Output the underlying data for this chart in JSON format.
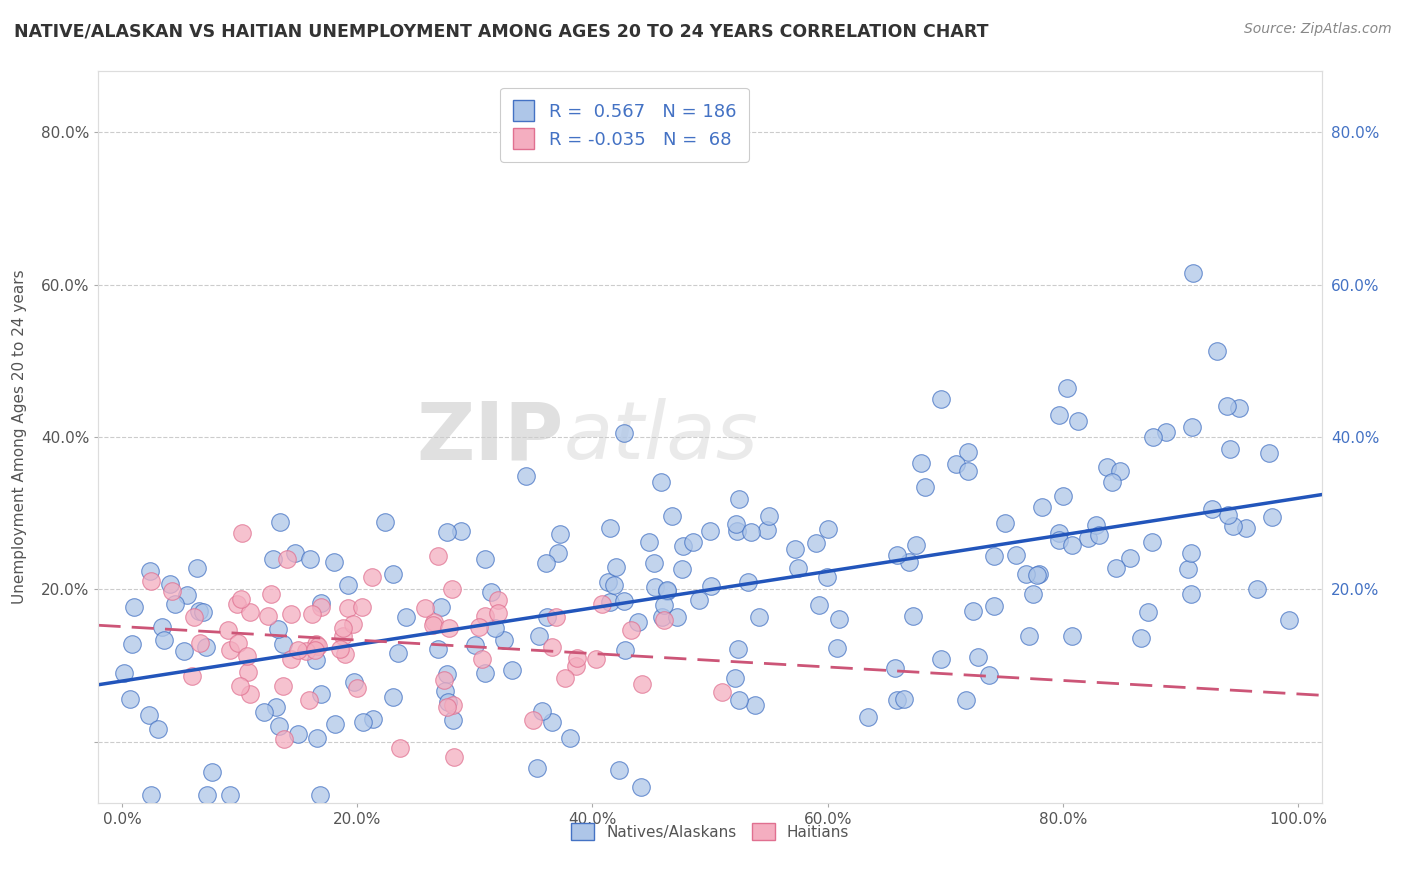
{
  "title": "NATIVE/ALASKAN VS HAITIAN UNEMPLOYMENT AMONG AGES 20 TO 24 YEARS CORRELATION CHART",
  "source": "Source: ZipAtlas.com",
  "ylabel": "Unemployment Among Ages 20 to 24 years",
  "xlim": [
    -0.02,
    1.02
  ],
  "ylim": [
    -0.08,
    0.88
  ],
  "xticks": [
    0.0,
    0.2,
    0.4,
    0.6,
    0.8,
    1.0
  ],
  "xticklabels": [
    "0.0%",
    "20.0%",
    "40.0%",
    "60.0%",
    "80.0%",
    "100.0%"
  ],
  "yticks": [
    0.0,
    0.2,
    0.4,
    0.6,
    0.8
  ],
  "yticklabels_left": [
    "",
    "20.0%",
    "40.0%",
    "60.0%",
    "80.0%"
  ],
  "yticklabels_right": [
    "",
    "20.0%",
    "40.0%",
    "60.0%",
    "80.0%"
  ],
  "native_R": 0.567,
  "native_N": 186,
  "haitian_R": -0.035,
  "haitian_N": 68,
  "native_color": "#aec6e8",
  "native_edge_color": "#4472c4",
  "haitian_color": "#f4aec0",
  "haitian_edge_color": "#e07090",
  "native_line_color": "#2255bb",
  "haitian_line_color": "#cc5577",
  "watermark_color": "#d8d8d8",
  "background_color": "#ffffff",
  "grid_color": "#cccccc",
  "legend_text_color": "#4472c4",
  "title_color": "#333333",
  "source_color": "#888888"
}
